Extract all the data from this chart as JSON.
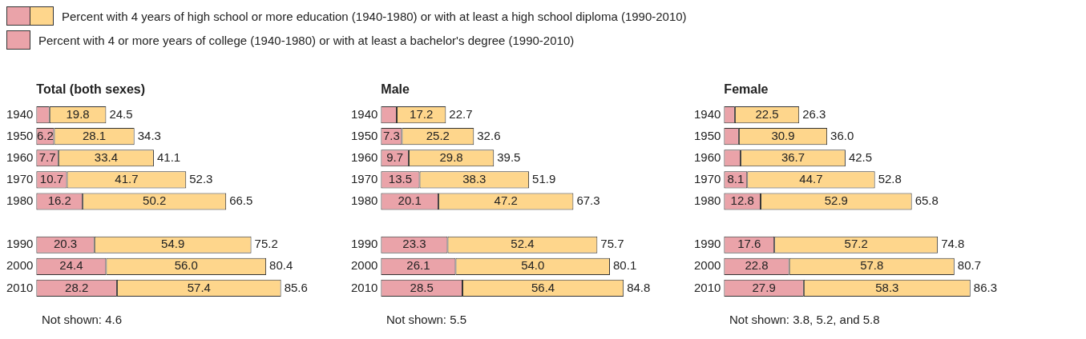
{
  "chart_data": [
    {
      "type": "bar",
      "orientation": "horizontal",
      "stacked": true,
      "title": "Total (both sexes)",
      "categories": [
        "1940",
        "1950",
        "1960",
        "1970",
        "1980",
        null,
        "1990",
        "2000",
        "2010"
      ],
      "tick_labels": "y",
      "grid": false,
      "legend": "top",
      "series": [
        {
          "name": "Percent with 4 or more years of college (1940-1980) or with at least a bachelor's degree (1990-2010)",
          "color": "#eaa3a9",
          "values": [
            4.6,
            6.2,
            7.7,
            10.7,
            16.2,
            null,
            20.3,
            24.4,
            28.2
          ],
          "value_labels": [
            null,
            "6.2",
            "7.7",
            "10.7",
            "16.2",
            null,
            "20.3",
            "24.4",
            "28.2"
          ]
        },
        {
          "name": "Percent with 4 years of high school or more education (1940-1980) or with at least a high school diploma (1990-2010)",
          "color": "#fed68c",
          "values": [
            19.8,
            28.1,
            33.4,
            41.7,
            50.2,
            null,
            54.9,
            56.0,
            57.4
          ],
          "value_labels": [
            "19.8",
            "28.1",
            "33.4",
            "41.7",
            "50.2",
            null,
            "54.9",
            "56.0",
            "57.4"
          ]
        }
      ],
      "totals": [
        "24.5",
        "34.3",
        "41.1",
        "52.3",
        "66.5",
        null,
        "75.2",
        "80.4",
        "85.6"
      ],
      "annotations": [
        "Not shown: 4.6"
      ]
    },
    {
      "type": "bar",
      "orientation": "horizontal",
      "stacked": true,
      "title": "Male",
      "categories": [
        "1940",
        "1950",
        "1960",
        "1970",
        "1980",
        null,
        "1990",
        "2000",
        "2010"
      ],
      "tick_labels": "y",
      "grid": false,
      "series": [
        {
          "color": "#eaa3a9",
          "values": [
            5.5,
            7.3,
            9.7,
            13.5,
            20.1,
            null,
            23.3,
            26.1,
            28.5
          ],
          "value_labels": [
            null,
            "7.3",
            "9.7",
            "13.5",
            "20.1",
            null,
            "23.3",
            "26.1",
            "28.5"
          ]
        },
        {
          "color": "#fed68c",
          "values": [
            17.2,
            25.2,
            29.8,
            38.3,
            47.2,
            null,
            52.4,
            54.0,
            56.4
          ],
          "value_labels": [
            "17.2",
            "25.2",
            "29.8",
            "38.3",
            "47.2",
            null,
            "52.4",
            "54.0",
            "56.4"
          ]
        }
      ],
      "totals": [
        "22.7",
        "32.6",
        "39.5",
        "51.9",
        "67.3",
        null,
        "75.7",
        "80.1",
        "84.8"
      ],
      "annotations": [
        "Not shown: 5.5"
      ]
    },
    {
      "type": "bar",
      "orientation": "horizontal",
      "stacked": true,
      "title": "Female",
      "categories": [
        "1940",
        "1950",
        "1960",
        "1970",
        "1980",
        null,
        "1990",
        "2000",
        "2010"
      ],
      "tick_labels": "y",
      "grid": false,
      "series": [
        {
          "color": "#eaa3a9",
          "values": [
            3.8,
            5.2,
            5.8,
            8.1,
            12.8,
            null,
            17.6,
            22.8,
            27.9
          ],
          "value_labels": [
            null,
            null,
            null,
            "8.1",
            "12.8",
            null,
            "17.6",
            "22.8",
            "27.9"
          ]
        },
        {
          "color": "#fed68c",
          "values": [
            22.5,
            30.9,
            36.7,
            44.7,
            52.9,
            null,
            57.2,
            57.8,
            58.3
          ],
          "value_labels": [
            "22.5",
            "30.9",
            "36.7",
            "44.7",
            "52.9",
            null,
            "57.2",
            "57.8",
            "58.3"
          ]
        }
      ],
      "totals": [
        "26.3",
        "36.0",
        "42.5",
        "52.8",
        "65.8",
        null,
        "74.8",
        "80.7",
        "86.3"
      ],
      "annotations": [
        "Not shown: 3.8, 5.2, and 5.8"
      ]
    }
  ]
}
